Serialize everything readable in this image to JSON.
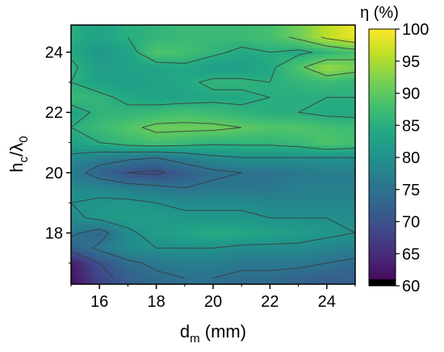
{
  "chart_data": {
    "type": "heatmap",
    "subtype": "filled-contour",
    "title": "",
    "xlabel": {
      "main": "d",
      "sub": "m",
      "rest": " (mm)"
    },
    "ylabel": {
      "main": "h",
      "sub1": "c",
      "mid": "/λ",
      "sub2": "0"
    },
    "colorbar_title": "η (%)",
    "colormap": "viridis",
    "xlim": [
      15,
      25
    ],
    "ylim": [
      16.3,
      24.9
    ],
    "xticks": [
      16,
      18,
      20,
      22,
      24
    ],
    "yticks": [
      18,
      20,
      22,
      24
    ],
    "clim": [
      60,
      100
    ],
    "colorbar_ticks": [
      60,
      65,
      70,
      75,
      80,
      85,
      90,
      95,
      100
    ],
    "grid": false,
    "x": [
      15,
      16,
      17,
      18,
      19,
      20,
      21,
      22,
      23,
      24,
      25
    ],
    "y": [
      16.5,
      17.0,
      17.5,
      18.0,
      18.5,
      19.0,
      19.5,
      20.0,
      20.5,
      21.0,
      21.5,
      22.0,
      22.5,
      23.0,
      23.5,
      24.0,
      24.5
    ],
    "z": [
      [
        62,
        68,
        72,
        74,
        75,
        75,
        74,
        74,
        73,
        72,
        72
      ],
      [
        63,
        70,
        74,
        76,
        77,
        77,
        76,
        76,
        76,
        75,
        74
      ],
      [
        72,
        76,
        79,
        80,
        80,
        80,
        79,
        79,
        79,
        78,
        77
      ],
      [
        76,
        73,
        79,
        82,
        83,
        85,
        84,
        83,
        82,
        81,
        80
      ],
      [
        79,
        81,
        82,
        82,
        81,
        81,
        81,
        80,
        80,
        80,
        79
      ],
      [
        80,
        81,
        81,
        80,
        79,
        79,
        79,
        78,
        78,
        78,
        78
      ],
      [
        79,
        78,
        77,
        76,
        75,
        76,
        76,
        76,
        77,
        77,
        77
      ],
      [
        77,
        73,
        70,
        69,
        72,
        74,
        75,
        75,
        76,
        77,
        77
      ],
      [
        79,
        77,
        76,
        75,
        77,
        79,
        80,
        80,
        80,
        80,
        80
      ],
      [
        83,
        85,
        87,
        88,
        87,
        86,
        86,
        86,
        87,
        89,
        88
      ],
      [
        85,
        87,
        89,
        91,
        91,
        91,
        90,
        89,
        89,
        88,
        87
      ],
      [
        83,
        86,
        86,
        87,
        88,
        87,
        86,
        85,
        85,
        84,
        84
      ],
      [
        87,
        86,
        84,
        83,
        83,
        84,
        84,
        85,
        85,
        85,
        85
      ],
      [
        85,
        83,
        82,
        83,
        84,
        86,
        86,
        85,
        86,
        87,
        86
      ],
      [
        86,
        82,
        83,
        83,
        84,
        82,
        82,
        84,
        89,
        94,
        92
      ],
      [
        84,
        81,
        83,
        89,
        88,
        86,
        84,
        85,
        84,
        86,
        88
      ],
      [
        85,
        83,
        85,
        86,
        87,
        87,
        87,
        88,
        91,
        96,
        99
      ]
    ]
  }
}
